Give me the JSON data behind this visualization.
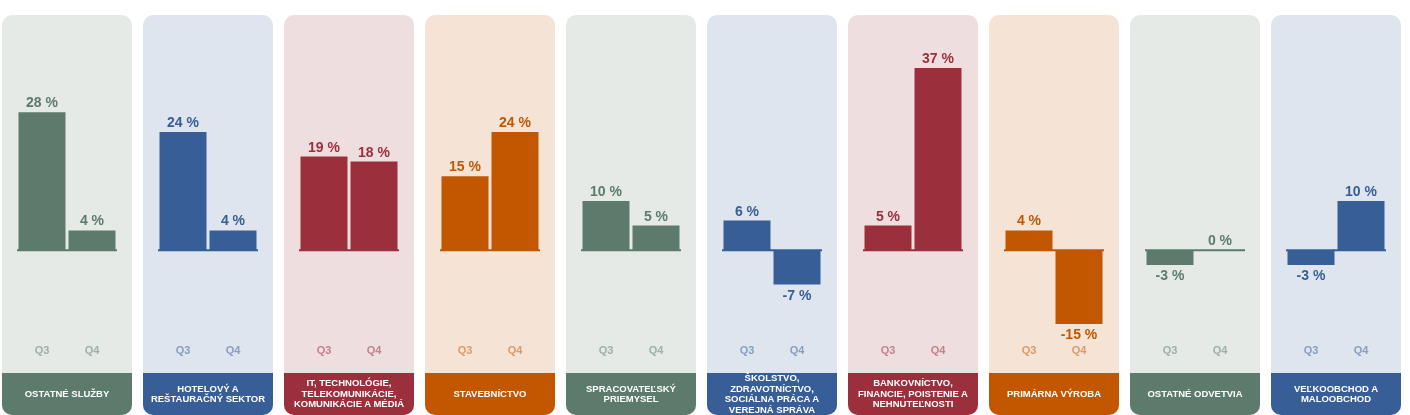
{
  "chart_data": [
    {
      "type": "bar",
      "title": "OSTATNÉ SLUŽBY",
      "categories": [
        "Q3",
        "Q4"
      ],
      "values": [
        28,
        4
      ],
      "value_labels": [
        "28 %",
        "4 %"
      ],
      "color": "#5d7b6c",
      "ref_lines": [
        {
          "axis": "y",
          "value": 0,
          "color": "#5d7b6c"
        }
      ],
      "tick_labels": "x"
    },
    {
      "type": "bar",
      "title": "HOTELOVÝ A REŠTAURAČNÝ SEKTOR",
      "categories": [
        "Q3",
        "Q4"
      ],
      "values": [
        24,
        4
      ],
      "value_labels": [
        "24 %",
        "4 %"
      ],
      "color": "#375e96",
      "ref_lines": [
        {
          "axis": "y",
          "value": 0,
          "color": "#375e96"
        }
      ],
      "tick_labels": "x"
    },
    {
      "type": "bar",
      "title": "IT, TECHNOLÓGIE, TELEKOMUNIKÁCIE, KOMUNIKÁCIE A MÉDIÁ",
      "categories": [
        "Q3",
        "Q4"
      ],
      "values": [
        19,
        18
      ],
      "value_labels": [
        "19 %",
        "18 %"
      ],
      "color": "#9b2f3c",
      "ref_lines": [
        {
          "axis": "y",
          "value": 0,
          "color": "#9b2f3c"
        }
      ],
      "tick_labels": "x"
    },
    {
      "type": "bar",
      "title": "STAVEBNÍCTVO",
      "categories": [
        "Q3",
        "Q4"
      ],
      "values": [
        15,
        24
      ],
      "value_labels": [
        "15 %",
        "24 %"
      ],
      "color": "#c25700",
      "ref_lines": [
        {
          "axis": "y",
          "value": 0,
          "color": "#c25700"
        }
      ],
      "tick_labels": "x"
    },
    {
      "type": "bar",
      "title": "SPRACOVATEĽSKÝ PRIEMYSEL",
      "categories": [
        "Q3",
        "Q4"
      ],
      "values": [
        10,
        5
      ],
      "value_labels": [
        "10 %",
        "5 %"
      ],
      "color": "#5d7b6c",
      "ref_lines": [
        {
          "axis": "y",
          "value": 0,
          "color": "#5d7b6c"
        }
      ],
      "tick_labels": "x"
    },
    {
      "type": "bar",
      "title": "ŠKOLSTVO, ZDRAVOTNÍCTVO, SOCIÁLNA PRÁCA A VEREJNÁ SPRÁVA",
      "categories": [
        "Q3",
        "Q4"
      ],
      "values": [
        6,
        -7
      ],
      "value_labels": [
        "6 %",
        "-7 %"
      ],
      "color": "#375e96",
      "ref_lines": [
        {
          "axis": "y",
          "value": 0,
          "color": "#375e96"
        }
      ],
      "tick_labels": "x"
    },
    {
      "type": "bar",
      "title": "BANKOVNÍCTVO, FINANCIE, POISTENIE A NEHNUTEĽNOSTI",
      "categories": [
        "Q3",
        "Q4"
      ],
      "values": [
        5,
        37
      ],
      "value_labels": [
        "5 %",
        "37 %"
      ],
      "color": "#9b2f3c",
      "ref_lines": [
        {
          "axis": "y",
          "value": 0,
          "color": "#9b2f3c"
        }
      ],
      "tick_labels": "x"
    },
    {
      "type": "bar",
      "title": "PRIMÁRNA VÝROBA",
      "categories": [
        "Q3",
        "Q4"
      ],
      "values": [
        4,
        -15
      ],
      "value_labels": [
        "4 %",
        "-15 %"
      ],
      "color": "#c25700",
      "ref_lines": [
        {
          "axis": "y",
          "value": 0,
          "color": "#c25700"
        }
      ],
      "tick_labels": "x"
    },
    {
      "type": "bar",
      "title": "OSTATNÉ ODVETVIA",
      "categories": [
        "Q3",
        "Q4"
      ],
      "values": [
        -3,
        0
      ],
      "value_labels": [
        "-3 %",
        "0 %"
      ],
      "color": "#5d7b6c",
      "ref_lines": [
        {
          "axis": "y",
          "value": 0,
          "color": "#5d7b6c"
        }
      ],
      "tick_labels": "x"
    },
    {
      "type": "bar",
      "title": "VEĽKOOBCHOD A MALOOBCHOD",
      "categories": [
        "Q3",
        "Q4"
      ],
      "values": [
        -3,
        10
      ],
      "value_labels": [
        "-3 %",
        "10 %"
      ],
      "color": "#375e96",
      "ref_lines": [
        {
          "axis": "y",
          "value": 0,
          "color": "#375e96"
        }
      ],
      "tick_labels": "x"
    }
  ]
}
